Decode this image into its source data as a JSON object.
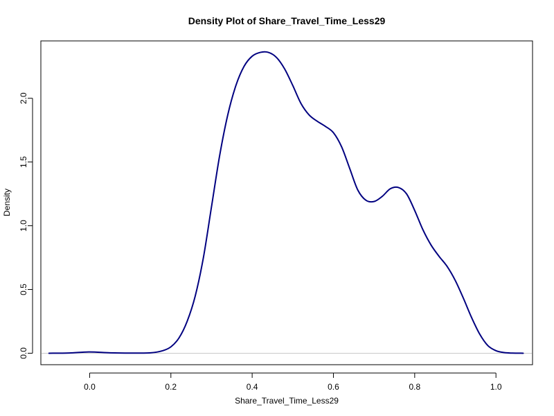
{
  "chart_data": {
    "type": "line",
    "title": "Density Plot of Share_Travel_Time_Less29",
    "xlabel": "Share_Travel_Time_Less29",
    "ylabel": "Density",
    "xlim": [
      -0.12,
      1.09
    ],
    "ylim": [
      -0.09,
      2.45
    ],
    "x_ticks": [
      0.0,
      0.2,
      0.4,
      0.6,
      0.8,
      1.0
    ],
    "x_tick_labels": [
      "0.0",
      "0.2",
      "0.4",
      "0.6",
      "0.8",
      "1.0"
    ],
    "y_ticks": [
      0.0,
      0.5,
      1.0,
      1.5,
      2.0
    ],
    "y_tick_labels": [
      "0.0",
      "0.5",
      "1.0",
      "1.5",
      "2.0"
    ],
    "grid": false,
    "baseline": 0,
    "series": [
      {
        "color": "#000080",
        "x": [
          -0.1,
          -0.05,
          0.0,
          0.05,
          0.1,
          0.15,
          0.18,
          0.2,
          0.22,
          0.24,
          0.26,
          0.28,
          0.3,
          0.32,
          0.34,
          0.36,
          0.38,
          0.4,
          0.42,
          0.44,
          0.46,
          0.48,
          0.5,
          0.52,
          0.54,
          0.56,
          0.58,
          0.6,
          0.62,
          0.64,
          0.66,
          0.68,
          0.7,
          0.72,
          0.74,
          0.76,
          0.78,
          0.8,
          0.82,
          0.84,
          0.86,
          0.88,
          0.9,
          0.92,
          0.94,
          0.96,
          0.98,
          1.0,
          1.02,
          1.04,
          1.067
        ],
        "y": [
          0.0,
          0.002,
          0.01,
          0.003,
          0.001,
          0.003,
          0.02,
          0.05,
          0.12,
          0.25,
          0.45,
          0.75,
          1.15,
          1.55,
          1.87,
          2.1,
          2.25,
          2.33,
          2.36,
          2.36,
          2.32,
          2.23,
          2.1,
          1.96,
          1.87,
          1.82,
          1.78,
          1.73,
          1.62,
          1.45,
          1.28,
          1.2,
          1.19,
          1.23,
          1.29,
          1.3,
          1.25,
          1.12,
          0.97,
          0.85,
          0.76,
          0.68,
          0.57,
          0.43,
          0.28,
          0.15,
          0.06,
          0.02,
          0.005,
          0.001,
          0.0
        ]
      }
    ]
  }
}
